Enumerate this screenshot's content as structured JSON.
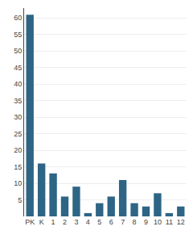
{
  "chart_data": {
    "type": "bar",
    "categories": [
      "PK",
      "K",
      "1",
      "2",
      "3",
      "4",
      "5",
      "6",
      "7",
      "8",
      "9",
      "10",
      "11",
      "12"
    ],
    "values": [
      61,
      16,
      13,
      6,
      9,
      1,
      4,
      6,
      11,
      4,
      3,
      7,
      1,
      3
    ],
    "color": "#2e6585",
    "ylim": [
      0,
      63
    ],
    "yticks": [
      5,
      10,
      15,
      20,
      25,
      30,
      35,
      40,
      45,
      50,
      55,
      60
    ],
    "grid": true
  }
}
